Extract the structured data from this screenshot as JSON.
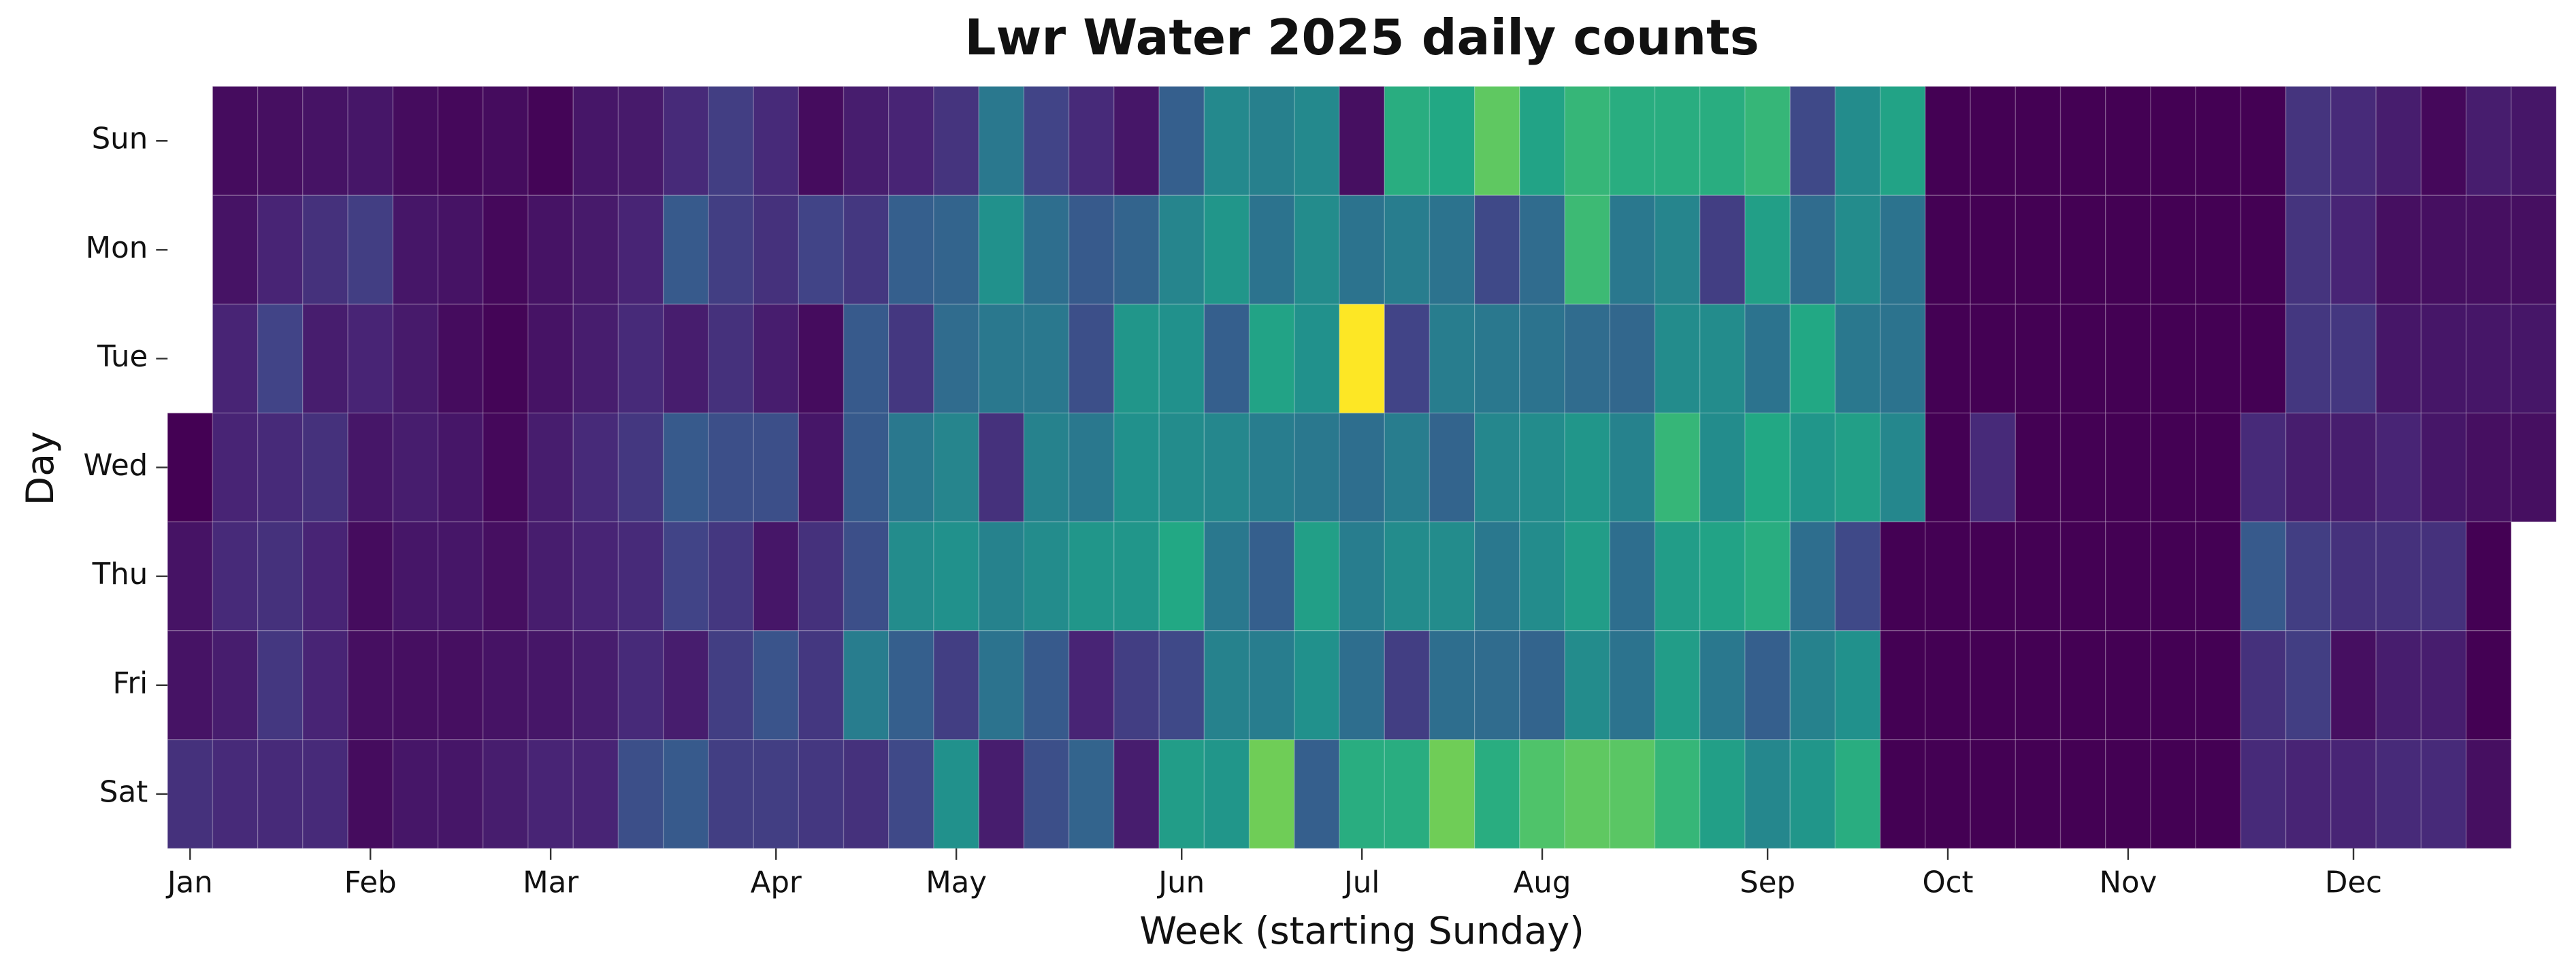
{
  "chart_data": {
    "type": "heatmap",
    "title": "Lwr Water 2025 daily counts",
    "xlabel": "Week (starting Sunday)",
    "ylabel": "Day",
    "categories": [
      "Sun",
      "Mon",
      "Tue",
      "Wed",
      "Thu",
      "Fri",
      "Sat"
    ],
    "xlim": [
      -0.5,
      52.5
    ],
    "xticks": [
      {
        "value": 0,
        "label": "Jan"
      },
      {
        "value": 4,
        "label": "Feb"
      },
      {
        "value": 8,
        "label": "Mar"
      },
      {
        "value": 13,
        "label": "Apr"
      },
      {
        "value": 17,
        "label": "May"
      },
      {
        "value": 22,
        "label": "Jun"
      },
      {
        "value": 26,
        "label": "Jul"
      },
      {
        "value": 30,
        "label": "Aug"
      },
      {
        "value": 35,
        "label": "Sep"
      },
      {
        "value": 39,
        "label": "Oct"
      },
      {
        "value": 43,
        "label": "Nov"
      },
      {
        "value": 48,
        "label": "Dec"
      }
    ],
    "zlim": [
      0,
      100
    ],
    "colorscale": [
      "#440154",
      "#482475",
      "#414487",
      "#355f8d",
      "#2a788e",
      "#21918c",
      "#22a884",
      "#44bf70",
      "#7ad151",
      "#bddf26",
      "#fde725"
    ],
    "values": [
      [
        null,
        3,
        4,
        5,
        6,
        3,
        2,
        3,
        1,
        6,
        7,
        12,
        18,
        12,
        3,
        8,
        10,
        15,
        40,
        20,
        12,
        6,
        30,
        47,
        43,
        47,
        4,
        62,
        60,
        75,
        58,
        66,
        62,
        62,
        62,
        66,
        22,
        48,
        58,
        0,
        0,
        0,
        0,
        0,
        0,
        0,
        0,
        15,
        12,
        8,
        2,
        8,
        6
      ],
      [
        null,
        5,
        10,
        14,
        18,
        6,
        5,
        2,
        5,
        7,
        10,
        28,
        18,
        14,
        20,
        16,
        30,
        32,
        50,
        36,
        28,
        32,
        45,
        52,
        38,
        48,
        38,
        42,
        38,
        22,
        35,
        68,
        40,
        45,
        18,
        56,
        35,
        48,
        38,
        0,
        0,
        0,
        0,
        0,
        0,
        0,
        0,
        15,
        10,
        4,
        4,
        4,
        4
      ],
      [
        null,
        10,
        20,
        8,
        10,
        7,
        3,
        1,
        5,
        8,
        12,
        8,
        14,
        8,
        3,
        28,
        16,
        35,
        40,
        40,
        24,
        52,
        50,
        30,
        58,
        50,
        100,
        20,
        42,
        40,
        38,
        35,
        33,
        48,
        48,
        38,
        60,
        40,
        38,
        0,
        0,
        0,
        0,
        0,
        0,
        0,
        0,
        16,
        16,
        6,
        6,
        6,
        6
      ],
      [
        0,
        10,
        12,
        14,
        6,
        8,
        6,
        2,
        8,
        12,
        16,
        28,
        24,
        24,
        6,
        28,
        40,
        45,
        14,
        44,
        40,
        50,
        48,
        46,
        42,
        40,
        36,
        42,
        32,
        46,
        48,
        52,
        44,
        66,
        48,
        60,
        52,
        56,
        46,
        0,
        12,
        0,
        0,
        0,
        0,
        0,
        12,
        8,
        8,
        10,
        6,
        4,
        4
      ],
      [
        5,
        12,
        14,
        10,
        3,
        6,
        6,
        4,
        8,
        10,
        12,
        20,
        16,
        6,
        14,
        24,
        48,
        50,
        44,
        48,
        52,
        52,
        60,
        40,
        30,
        56,
        42,
        48,
        48,
        40,
        48,
        55,
        36,
        55,
        58,
        62,
        36,
        22,
        0,
        0,
        0,
        0,
        0,
        0,
        0,
        0,
        28,
        18,
        14,
        14,
        14,
        0,
        null
      ],
      [
        5,
        8,
        16,
        10,
        4,
        4,
        4,
        5,
        6,
        8,
        12,
        8,
        18,
        26,
        16,
        42,
        30,
        18,
        38,
        28,
        10,
        18,
        22,
        44,
        42,
        50,
        36,
        18,
        36,
        35,
        32,
        48,
        38,
        55,
        40,
        30,
        44,
        50,
        0,
        0,
        0,
        0,
        0,
        0,
        0,
        0,
        14,
        18,
        4,
        8,
        8,
        0,
        null
      ],
      [
        14,
        12,
        12,
        12,
        3,
        6,
        6,
        8,
        10,
        10,
        24,
        28,
        18,
        18,
        16,
        14,
        22,
        50,
        8,
        24,
        32,
        8,
        55,
        52,
        78,
        30,
        62,
        62,
        78,
        62,
        72,
        75,
        74,
        66,
        56,
        46,
        52,
        62,
        0,
        0,
        0,
        0,
        0,
        0,
        0,
        0,
        12,
        10,
        10,
        12,
        12,
        4,
        null
      ]
    ]
  }
}
